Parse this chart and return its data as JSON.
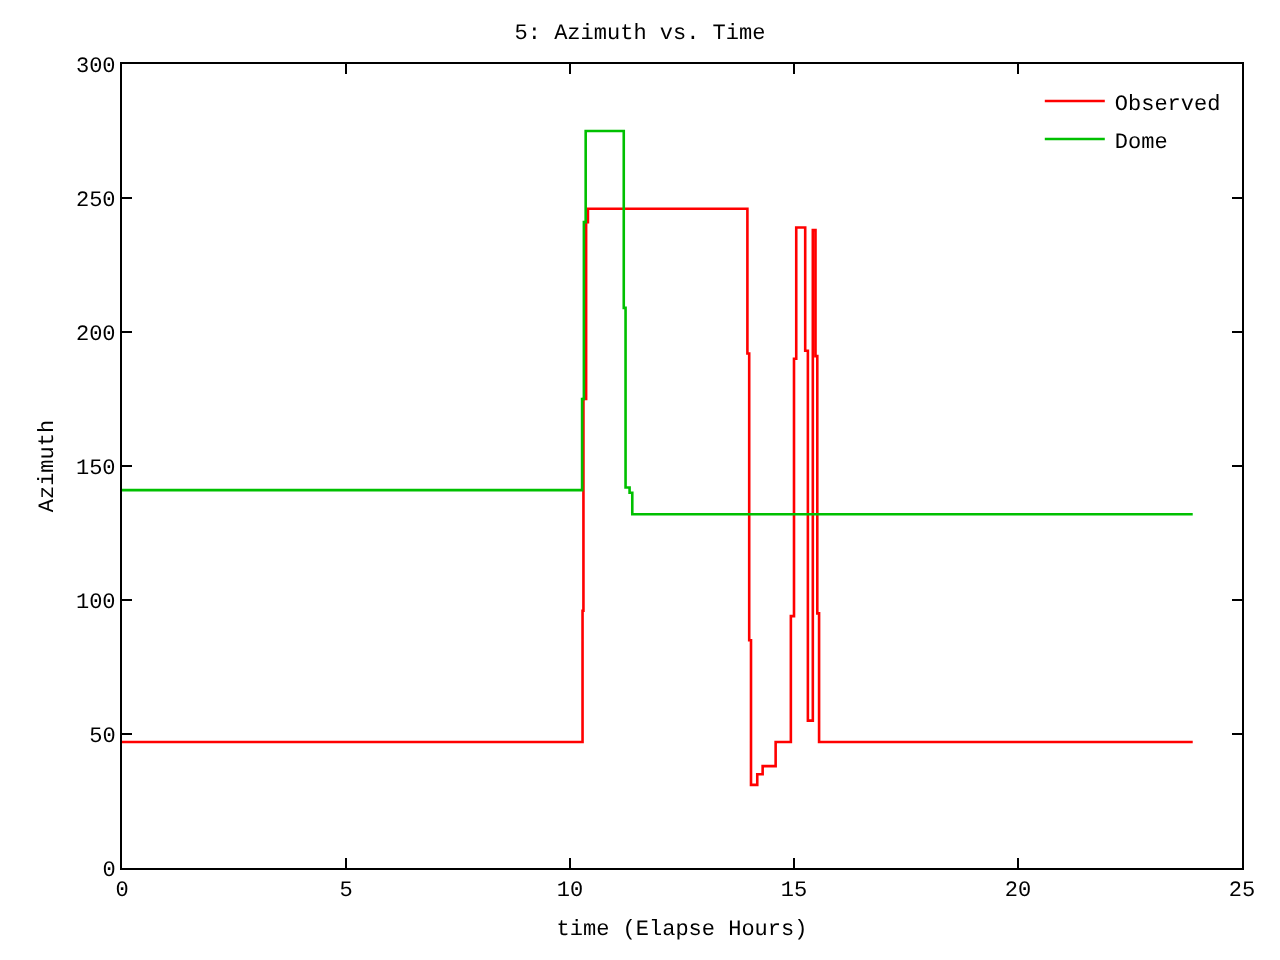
{
  "chart_data": {
    "type": "step",
    "title": "5: Azimuth vs. Time",
    "xlabel": "time (Elapse Hours)",
    "ylabel": "Azimuth",
    "xlim": [
      0,
      25
    ],
    "xticks": [
      0,
      5,
      10,
      15,
      20,
      25
    ],
    "ylim": [
      0,
      300
    ],
    "yticks": [
      0,
      50,
      100,
      150,
      200,
      250,
      300
    ],
    "grid": false,
    "legend": "top right",
    "marker": "none",
    "line_style": "solid",
    "series": [
      {
        "name": "Observed",
        "color": "#ff0000",
        "x": [
          0,
          10.28,
          10.3,
          10.36,
          10.4,
          13.96,
          14.0,
          14.04,
          14.18,
          14.3,
          14.59,
          14.93,
          15.0,
          15.05,
          15.25,
          15.31,
          15.42,
          15.48,
          15.52,
          15.56,
          23.9
        ],
        "values": [
          47,
          96,
          175,
          241,
          246,
          192,
          85,
          31,
          35,
          38,
          47,
          94,
          190,
          239,
          193,
          55,
          238,
          191,
          95,
          47,
          47
        ]
      },
      {
        "name": "Dome",
        "color": "#00c000",
        "x": [
          0,
          10.27,
          10.31,
          10.35,
          11.2,
          11.24,
          11.33,
          11.39,
          23.9
        ],
        "values": [
          141,
          175,
          241,
          275,
          209,
          142,
          140,
          132,
          132
        ]
      }
    ]
  }
}
